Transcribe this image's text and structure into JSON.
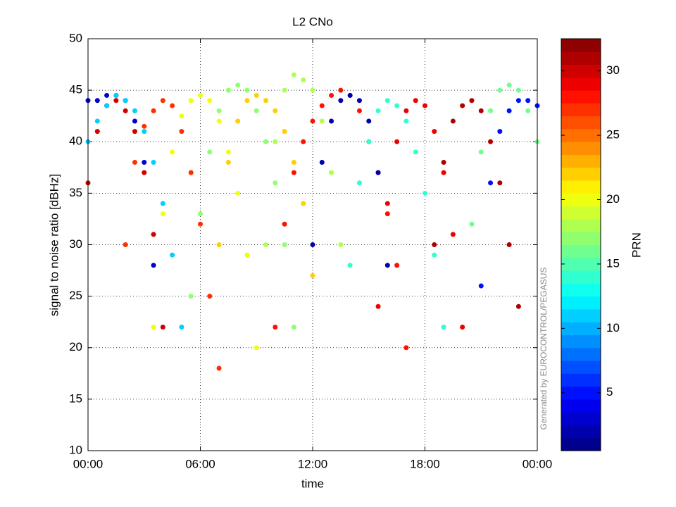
{
  "chart_data": {
    "type": "scatter",
    "title": "L2 CNo",
    "x_label": "time",
    "y_label": "signal to noise ratio [dBHz]",
    "colorbar_label": "PRN",
    "watermark": "Generated by EUROCONTROL/PEGASUS",
    "colormap": "jet",
    "grid": true,
    "xlim": [
      0,
      24
    ],
    "xticks": [
      {
        "value": 0,
        "label": "00:00"
      },
      {
        "value": 6,
        "label": "06:00"
      },
      {
        "value": 12,
        "label": "12:00"
      },
      {
        "value": 18,
        "label": "18:00"
      },
      {
        "value": 24,
        "label": "00:00"
      }
    ],
    "ylim": [
      10,
      50
    ],
    "yticks": [
      10,
      15,
      20,
      25,
      30,
      35,
      40,
      45,
      50
    ],
    "clim": [
      0.5,
      32.5
    ],
    "cticks": [
      5,
      10,
      15,
      20,
      25,
      30
    ],
    "series": [
      {
        "prn": 30,
        "x": [
          0,
          0.5,
          1,
          1.5,
          2,
          2.5,
          3,
          3.5,
          4
        ],
        "values": [
          36,
          41,
          43.5,
          44,
          43,
          41,
          37,
          31,
          22
        ]
      },
      {
        "prn": 27,
        "x": [
          2,
          2.5,
          3,
          3.5,
          4,
          4.5,
          5,
          5.5,
          6,
          6.5,
          7
        ],
        "values": [
          30,
          38,
          41.5,
          43,
          44,
          43.5,
          41,
          37,
          32,
          25,
          18
        ]
      },
      {
        "prn": 3,
        "x": [
          0,
          0.5,
          1,
          1.5,
          2,
          2.5,
          3,
          3.5
        ],
        "values": [
          44,
          44,
          44.5,
          44.5,
          44,
          42,
          38,
          28
        ]
      },
      {
        "prn": 20,
        "x": [
          3.5,
          4,
          4.5,
          5,
          5.5,
          6,
          6.5,
          7,
          7.5,
          8,
          8.5,
          9
        ],
        "values": [
          22,
          33,
          39,
          42.5,
          44,
          44.5,
          44,
          42,
          39,
          35,
          29,
          20
        ]
      },
      {
        "prn": 17,
        "x": [
          5.5,
          6,
          6.5,
          7,
          7.5,
          8,
          8.5,
          9,
          9.5,
          10,
          10.5,
          11
        ],
        "values": [
          25,
          33,
          39,
          43,
          45,
          45.5,
          45,
          43,
          40,
          36,
          30,
          22
        ]
      },
      {
        "prn": 22,
        "x": [
          7,
          7.5,
          8,
          8.5,
          9,
          9.5,
          10,
          10.5,
          11,
          11.5,
          12
        ],
        "values": [
          30,
          38,
          42,
          44,
          44.5,
          44,
          43,
          41,
          38,
          34,
          27
        ]
      },
      {
        "prn": 18,
        "x": [
          9.5,
          10,
          10.5,
          11,
          11.5,
          12,
          12.5,
          13,
          13.5
        ],
        "values": [
          30,
          40,
          45,
          46.5,
          46,
          45,
          42,
          37,
          30
        ]
      },
      {
        "prn": 28,
        "x": [
          10,
          10.5,
          11,
          11.5,
          12,
          12.5,
          13,
          13.5,
          14,
          14.5,
          15,
          15.5,
          16,
          16.5,
          17
        ],
        "values": [
          22,
          32,
          37,
          40,
          42,
          43.5,
          44.5,
          45,
          44.5,
          43,
          40,
          37,
          33,
          28,
          20
        ]
      },
      {
        "prn": 2,
        "x": [
          12,
          12.5,
          13,
          13.5,
          14,
          14.5,
          15,
          15.5,
          16
        ],
        "values": [
          30,
          38,
          42,
          44,
          44.5,
          44,
          42,
          37,
          28
        ]
      },
      {
        "prn": 14,
        "x": [
          14,
          14.5,
          15,
          15.5,
          16,
          16.5,
          17,
          17.5,
          18,
          18.5,
          19
        ],
        "values": [
          28,
          36,
          40,
          43,
          44,
          43.5,
          42,
          39,
          35,
          29,
          22
        ]
      },
      {
        "prn": 29,
        "x": [
          15.5,
          16,
          16.5,
          17,
          17.5,
          18,
          18.5,
          19,
          19.5,
          20
        ],
        "values": [
          24,
          34,
          40,
          43,
          44,
          43.5,
          41,
          37,
          31,
          22
        ]
      },
      {
        "prn": 31,
        "x": [
          18.5,
          19,
          19.5,
          20,
          20.5,
          21,
          21.5,
          22,
          22.5,
          23
        ],
        "values": [
          30,
          38,
          42,
          43.5,
          44,
          43,
          40,
          36,
          30,
          24
        ]
      },
      {
        "prn": 16,
        "x": [
          20.5,
          21,
          21.5,
          22,
          22.5,
          23,
          23.5,
          24
        ],
        "values": [
          32,
          39,
          43,
          45,
          45.5,
          45,
          43,
          40
        ]
      },
      {
        "prn": 5,
        "x": [
          21,
          21.5,
          22,
          22.5,
          23,
          23.5,
          24
        ],
        "values": [
          26,
          36,
          41,
          43,
          44,
          44,
          43.5
        ]
      },
      {
        "prn": 11,
        "x": [
          0,
          0.5,
          1,
          1.5,
          2,
          2.5,
          3,
          3.5,
          4,
          4.5,
          5
        ],
        "values": [
          40,
          42,
          43.5,
          44.5,
          44,
          43,
          41,
          38,
          34,
          29,
          22
        ]
      }
    ]
  }
}
